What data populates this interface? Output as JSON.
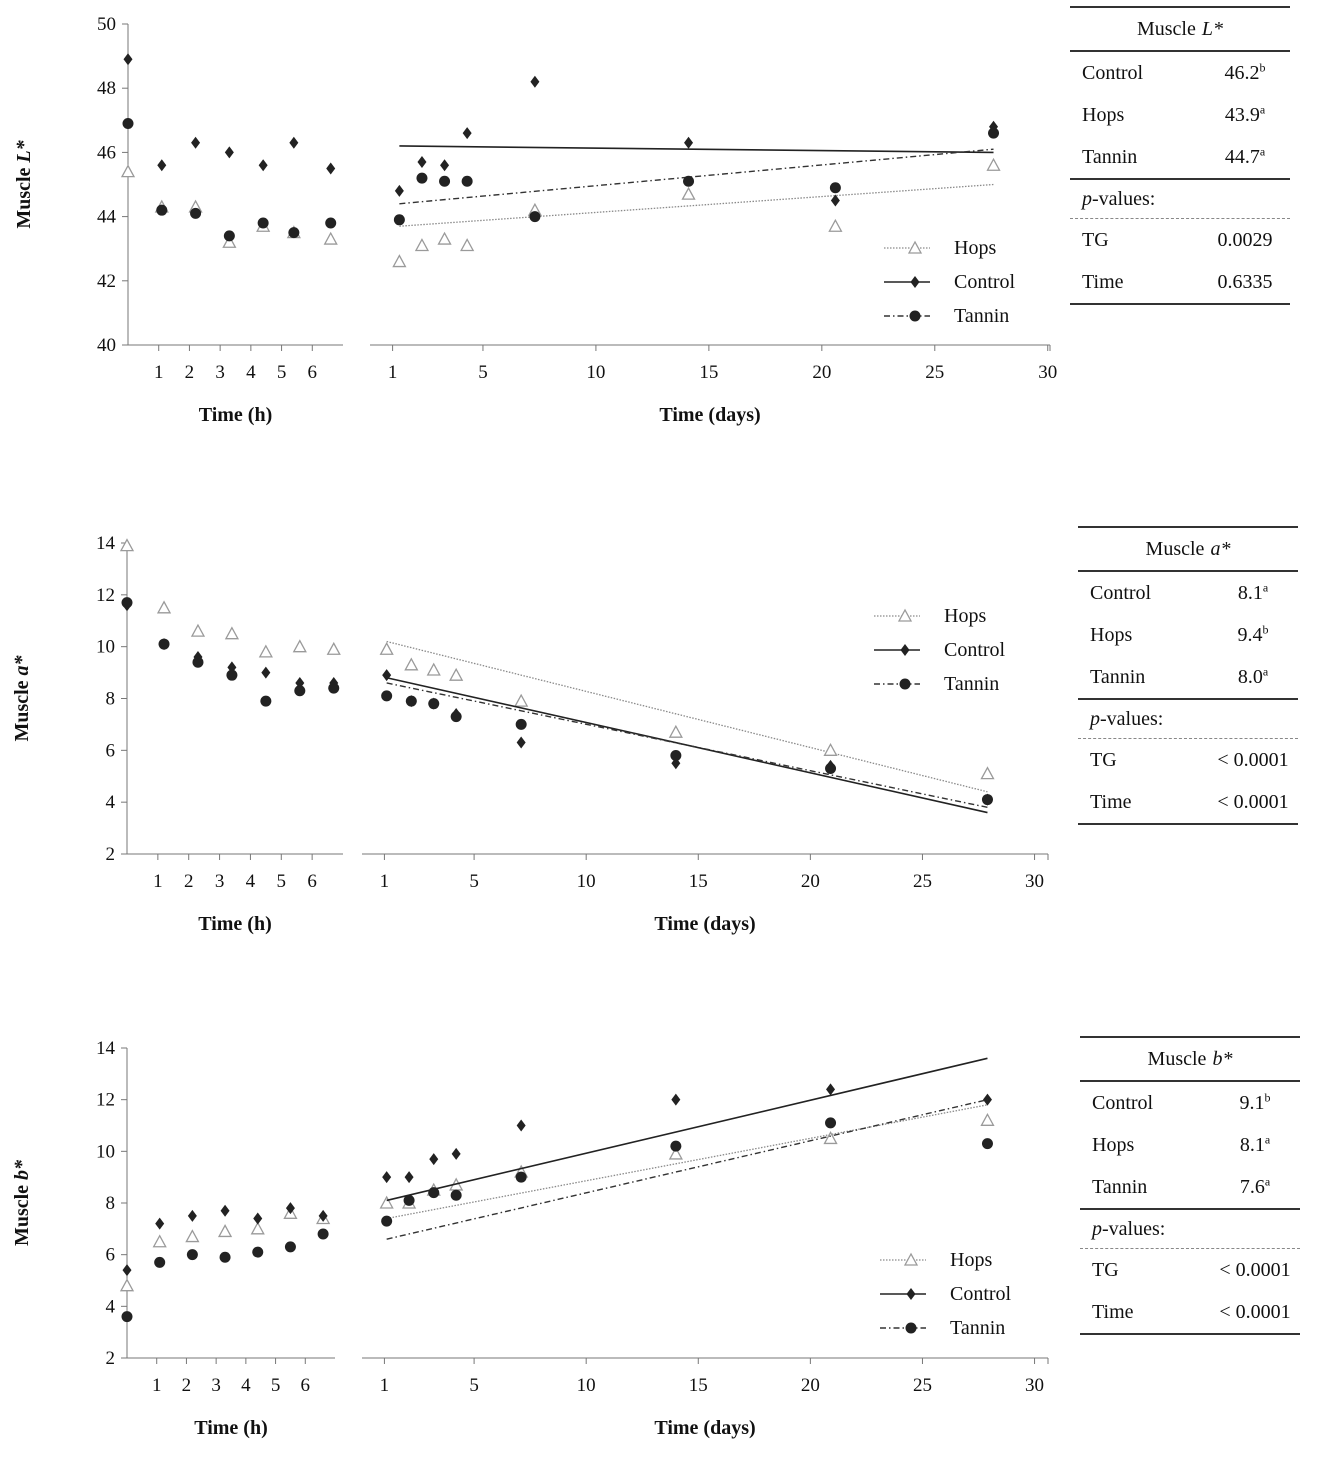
{
  "colors": {
    "hops": "#9a9a9a",
    "control": "#222222",
    "tannin": "#222222"
  },
  "legend": [
    "Hops",
    "Control",
    "Tannin"
  ],
  "tables": [
    {
      "title": "Muscle",
      "title_var": "L*",
      "rows": [
        {
          "label": "Control",
          "value": "46.2",
          "sup": "b"
        },
        {
          "label": "Hops",
          "value": "43.9",
          "sup": "a"
        },
        {
          "label": "Tannin",
          "value": "44.7",
          "sup": "a"
        }
      ],
      "pvalues_label": "p",
      "pvalues_rest": "-values:",
      "pvalues": [
        {
          "label": "TG",
          "value": "0.0029"
        },
        {
          "label": "Time",
          "value": "0.6335"
        }
      ]
    },
    {
      "title": "Muscle",
      "title_var": "a*",
      "rows": [
        {
          "label": "Control",
          "value": "8.1",
          "sup": "a"
        },
        {
          "label": "Hops",
          "value": "9.4",
          "sup": "b"
        },
        {
          "label": "Tannin",
          "value": "8.0",
          "sup": "a"
        }
      ],
      "pvalues_label": "p",
      "pvalues_rest": "-values:",
      "pvalues": [
        {
          "label": "TG",
          "value": "< 0.0001"
        },
        {
          "label": "Time",
          "value": "< 0.0001"
        }
      ]
    },
    {
      "title": "Muscle",
      "title_var": "b*",
      "rows": [
        {
          "label": "Control",
          "value": "9.1",
          "sup": "b"
        },
        {
          "label": "Hops",
          "value": "8.1",
          "sup": "a"
        },
        {
          "label": "Tannin",
          "value": "7.6",
          "sup": "a"
        }
      ],
      "pvalues_label": "p",
      "pvalues_rest": "-values:",
      "pvalues": [
        {
          "label": "TG",
          "value": "< 0.0001"
        },
        {
          "label": "Time",
          "value": "< 0.0001"
        }
      ]
    }
  ],
  "chart_data": [
    {
      "type": "scatter",
      "ylabel_prefix": "Muscle",
      "ylabel_var": "L*",
      "ylim": [
        40,
        50
      ],
      "yticks": [
        40,
        42,
        44,
        46,
        48,
        50
      ],
      "left_panel": {
        "xlabel": "Time (h)",
        "xlim": [
          0,
          7
        ],
        "xticks": [
          1,
          2,
          3,
          4,
          5,
          6
        ],
        "series": [
          {
            "name": "Hops",
            "x": [
              0,
              1.1,
              2.2,
              3.3,
              4.4,
              5.4,
              6.6
            ],
            "y": [
              45.4,
              44.3,
              44.3,
              43.2,
              43.7,
              43.5,
              43.3
            ]
          },
          {
            "name": "Control",
            "x": [
              0,
              1.1,
              2.2,
              3.3,
              4.4,
              5.4,
              6.6
            ],
            "y": [
              48.9,
              45.6,
              46.3,
              46.0,
              45.6,
              46.3,
              45.5
            ]
          },
          {
            "name": "Tannin",
            "x": [
              0,
              1.1,
              2.2,
              3.3,
              4.4,
              5.4,
              6.6
            ],
            "y": [
              46.9,
              44.2,
              44.1,
              43.4,
              43.8,
              43.5,
              43.8
            ]
          }
        ]
      },
      "right_panel": {
        "xlabel": "Time (days)",
        "xlim": [
          0,
          30.1
        ],
        "xticks": [
          1,
          5,
          10,
          15,
          20,
          25,
          30
        ],
        "series": [
          {
            "name": "Hops",
            "x": [
              1.3,
              2.3,
              3.3,
              4.3,
              7.3,
              14.1,
              20.6,
              27.6
            ],
            "y": [
              42.6,
              43.1,
              43.3,
              43.1,
              44.2,
              44.7,
              43.7,
              45.6
            ],
            "trend": [
              [
                1.3,
                43.7
              ],
              [
                27.6,
                45.0
              ]
            ]
          },
          {
            "name": "Control",
            "x": [
              1.3,
              2.3,
              3.3,
              4.3,
              7.3,
              14.1,
              20.6,
              27.6
            ],
            "y": [
              44.8,
              45.7,
              45.6,
              46.6,
              48.2,
              46.3,
              44.5,
              46.8
            ],
            "trend": [
              [
                1.3,
                46.2
              ],
              [
                27.6,
                46.0
              ]
            ]
          },
          {
            "name": "Tannin",
            "x": [
              1.3,
              2.3,
              3.3,
              4.3,
              7.3,
              14.1,
              20.6,
              27.6
            ],
            "y": [
              43.9,
              45.2,
              45.1,
              45.1,
              44.0,
              45.1,
              44.9,
              46.6
            ],
            "trend": [
              [
                1.3,
                44.4
              ],
              [
                27.6,
                46.1
              ]
            ]
          }
        ]
      }
    },
    {
      "type": "scatter",
      "ylabel_prefix": "Muscle",
      "ylabel_var": "a*",
      "ylim": [
        2,
        14
      ],
      "yticks": [
        2,
        4,
        6,
        8,
        10,
        12,
        14
      ],
      "left_panel": {
        "xlabel": "Time (h)",
        "xlim": [
          0,
          7
        ],
        "xticks": [
          1,
          2,
          3,
          4,
          5,
          6
        ],
        "series": [
          {
            "name": "Hops",
            "x": [
              0,
              1.2,
              2.3,
              3.4,
              4.5,
              5.6,
              6.7
            ],
            "y": [
              13.9,
              11.5,
              10.6,
              10.5,
              9.8,
              10.0,
              9.9
            ]
          },
          {
            "name": "Control",
            "x": [
              0,
              1.2,
              2.3,
              3.4,
              4.5,
              5.6,
              6.7
            ],
            "y": [
              11.6,
              10.1,
              9.6,
              9.2,
              9.0,
              8.6,
              8.6
            ]
          },
          {
            "name": "Tannin",
            "x": [
              0,
              1.2,
              2.3,
              3.4,
              4.5,
              5.6,
              6.7
            ],
            "y": [
              11.7,
              10.1,
              9.4,
              8.9,
              7.9,
              8.3,
              8.4
            ]
          }
        ]
      },
      "right_panel": {
        "xlabel": "Time (days)",
        "xlim": [
          0,
          30.6
        ],
        "xticks": [
          1,
          5,
          10,
          15,
          20,
          25,
          30
        ],
        "series": [
          {
            "name": "Hops",
            "x": [
              1.1,
              2.2,
              3.2,
              4.2,
              7.1,
              14.0,
              20.9,
              27.9
            ],
            "y": [
              9.9,
              9.3,
              9.1,
              8.9,
              7.9,
              6.7,
              6.0,
              5.1
            ],
            "trend": [
              [
                1.1,
                10.2
              ],
              [
                27.9,
                4.4
              ]
            ]
          },
          {
            "name": "Control",
            "x": [
              1.1,
              2.2,
              3.2,
              4.2,
              7.1,
              14.0,
              20.9,
              27.9
            ],
            "y": [
              8.9,
              7.9,
              7.8,
              7.4,
              6.3,
              5.5,
              5.4,
              4.1
            ],
            "trend": [
              [
                1.1,
                8.8
              ],
              [
                27.9,
                3.6
              ]
            ]
          },
          {
            "name": "Tannin",
            "x": [
              1.1,
              2.2,
              3.2,
              4.2,
              7.1,
              14.0,
              20.9,
              27.9
            ],
            "y": [
              8.1,
              7.9,
              7.8,
              7.3,
              7.0,
              5.8,
              5.3,
              4.1
            ],
            "trend": [
              [
                1.1,
                8.6
              ],
              [
                27.9,
                3.8
              ]
            ]
          }
        ]
      }
    },
    {
      "type": "scatter",
      "ylabel_prefix": "Muscle",
      "ylabel_var": "b*",
      "ylim": [
        2,
        14
      ],
      "yticks": [
        2,
        4,
        6,
        8,
        10,
        12,
        14
      ],
      "left_panel": {
        "xlabel": "Time (h)",
        "xlim": [
          0,
          7
        ],
        "xticks": [
          1,
          2,
          3,
          4,
          5,
          6
        ],
        "series": [
          {
            "name": "Hops",
            "x": [
              0,
              1.1,
              2.2,
              3.3,
              4.4,
              5.5,
              6.6
            ],
            "y": [
              4.8,
              6.5,
              6.7,
              6.9,
              7.0,
              7.6,
              7.4
            ]
          },
          {
            "name": "Control",
            "x": [
              0,
              1.1,
              2.2,
              3.3,
              4.4,
              5.5,
              6.6
            ],
            "y": [
              5.4,
              7.2,
              7.5,
              7.7,
              7.4,
              7.8,
              7.5
            ]
          },
          {
            "name": "Tannin",
            "x": [
              0,
              1.1,
              2.2,
              3.3,
              4.4,
              5.5,
              6.6
            ],
            "y": [
              3.6,
              5.7,
              6.0,
              5.9,
              6.1,
              6.3,
              6.8
            ]
          }
        ]
      },
      "right_panel": {
        "xlabel": "Time (days)",
        "xlim": [
          0,
          30.6
        ],
        "xticks": [
          1,
          5,
          10,
          15,
          20,
          25,
          30
        ],
        "series": [
          {
            "name": "Hops",
            "x": [
              1.1,
              2.1,
              3.2,
              4.2,
              7.1,
              14.0,
              20.9,
              27.9
            ],
            "y": [
              8.0,
              8.0,
              8.5,
              8.7,
              9.2,
              9.9,
              10.5,
              11.2
            ],
            "trend": [
              [
                1.1,
                7.4
              ],
              [
                27.9,
                11.8
              ]
            ]
          },
          {
            "name": "Control",
            "x": [
              1.1,
              2.1,
              3.2,
              4.2,
              7.1,
              14.0,
              20.9,
              27.9
            ],
            "y": [
              9.0,
              9.0,
              9.7,
              9.9,
              11.0,
              12.0,
              12.4,
              12.0
            ],
            "trend": [
              [
                1.1,
                8.1
              ],
              [
                27.9,
                13.6
              ]
            ]
          },
          {
            "name": "Tannin",
            "x": [
              1.1,
              2.1,
              3.2,
              4.2,
              7.1,
              14.0,
              20.9,
              27.9
            ],
            "y": [
              7.3,
              8.1,
              8.4,
              8.3,
              9.0,
              10.2,
              11.1,
              10.3
            ],
            "trend": [
              [
                1.1,
                6.6
              ],
              [
                27.9,
                12.0
              ]
            ]
          }
        ]
      }
    }
  ]
}
